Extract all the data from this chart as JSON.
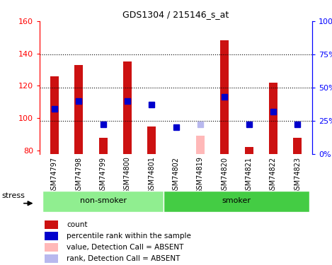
{
  "title": "GDS1304 / 215146_s_at",
  "samples": [
    "GSM74797",
    "GSM74798",
    "GSM74799",
    "GSM74800",
    "GSM74801",
    "GSM74802",
    "GSM74819",
    "GSM74820",
    "GSM74821",
    "GSM74822",
    "GSM74823"
  ],
  "bar_values": [
    126,
    133,
    88,
    135,
    95,
    null,
    null,
    148,
    82,
    122,
    88
  ],
  "bar_absent_values": [
    null,
    null,
    null,
    null,
    null,
    null,
    89,
    null,
    null,
    null,
    null
  ],
  "rank_values_pct": [
    34,
    40,
    22,
    40,
    37,
    20,
    null,
    43,
    22,
    32,
    22
  ],
  "rank_absent_pct": [
    null,
    null,
    null,
    null,
    null,
    null,
    22,
    null,
    null,
    null,
    null
  ],
  "ylim_left": [
    78,
    160
  ],
  "ylim_right": [
    0,
    100
  ],
  "yticks_left": [
    80,
    100,
    120,
    140,
    160
  ],
  "ytick_labels_left": [
    "80",
    "100",
    "120",
    "140",
    "160"
  ],
  "yticks_right": [
    0,
    25,
    50,
    75,
    100
  ],
  "ytick_labels_right": [
    "0%",
    "25%",
    "50%",
    "75%",
    "100%"
  ],
  "bar_color": "#cc1111",
  "bar_absent_color": "#ffb8b8",
  "rank_color": "#0000cc",
  "rank_absent_color": "#b8b8ee",
  "nonsmoker_color": "#90ee90",
  "smoker_color": "#44cc44",
  "sample_bg_color": "#d0d0d0",
  "nonsmoker_count": 5,
  "smoker_count": 6,
  "bar_width": 0.35,
  "rank_marker_size": 6,
  "legend_items": [
    {
      "label": "count",
      "color": "#cc1111"
    },
    {
      "label": "percentile rank within the sample",
      "color": "#0000cc"
    },
    {
      "label": "value, Detection Call = ABSENT",
      "color": "#ffb8b8"
    },
    {
      "label": "rank, Detection Call = ABSENT",
      "color": "#b8b8ee"
    }
  ]
}
